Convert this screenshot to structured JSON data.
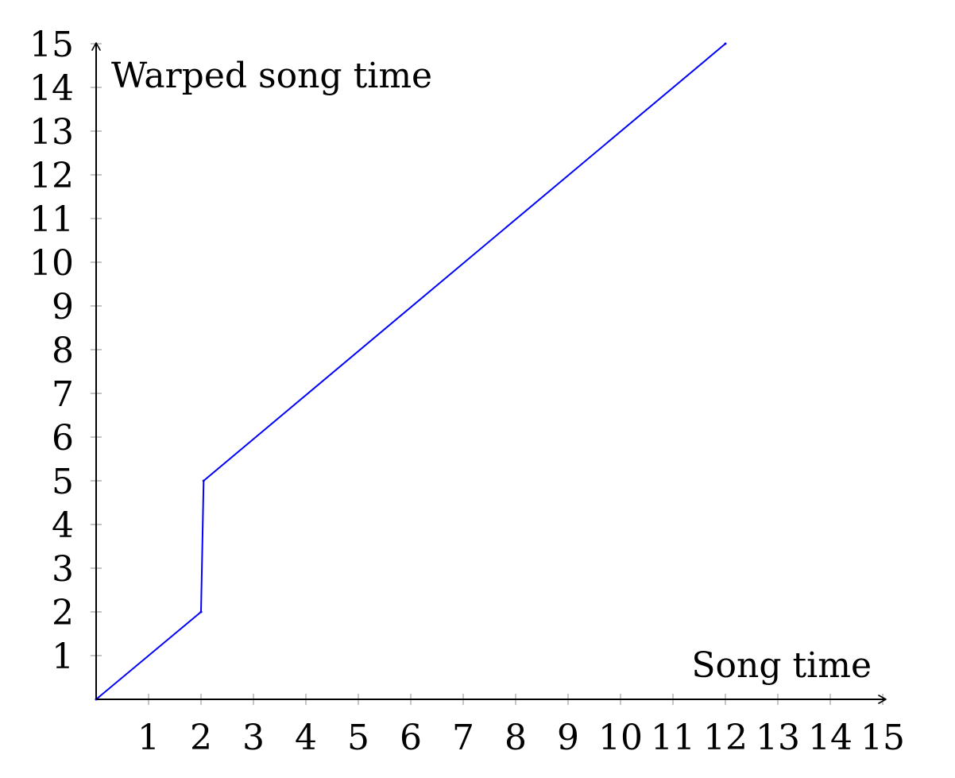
{
  "chart_data": {
    "type": "line",
    "xlabel": "Song time",
    "ylabel": "Warped song time",
    "xlim": [
      0,
      15
    ],
    "ylim": [
      0,
      15
    ],
    "x_ticks": [
      1,
      2,
      3,
      4,
      5,
      6,
      7,
      8,
      9,
      10,
      11,
      12,
      13,
      14,
      15
    ],
    "y_ticks": [
      1,
      2,
      3,
      4,
      5,
      6,
      7,
      8,
      9,
      10,
      11,
      12,
      13,
      14,
      15
    ],
    "grid": false,
    "series": [
      {
        "color": "#0000ff",
        "points": [
          {
            "x": 0,
            "y": 0
          },
          {
            "x": 2,
            "y": 2
          },
          {
            "x": 2.05,
            "y": 5
          },
          {
            "x": 12,
            "y": 15
          }
        ]
      }
    ]
  }
}
